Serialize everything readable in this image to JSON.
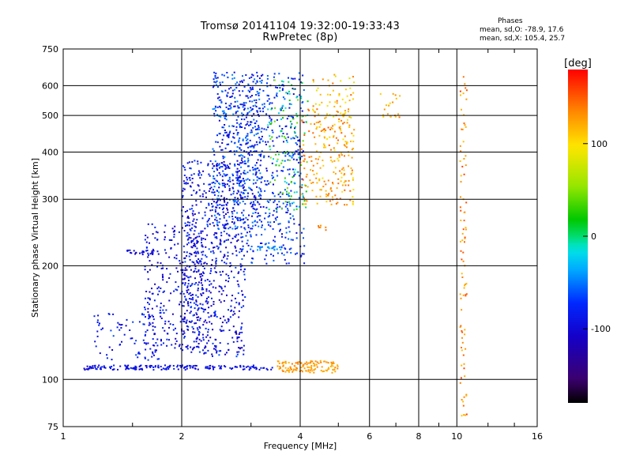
{
  "chart_data": {
    "type": "scatter",
    "title": "Tromsø 20141104 19:32:00-19:33:43",
    "subtitle": "RwPretec (8p)",
    "xlabel": "Frequency [MHz]",
    "ylabel": "Stationary phase Virtual Height [km]",
    "x_scale": "log",
    "y_scale": "log",
    "xlim": [
      1,
      16
    ],
    "ylim": [
      75,
      750
    ],
    "x_ticks": [
      1,
      2,
      4,
      6,
      8,
      10,
      16
    ],
    "x_tick_labels": [
      "1",
      "2",
      "4",
      "6",
      "8",
      "10",
      "16"
    ],
    "y_ticks": [
      75,
      100,
      200,
      300,
      400,
      500,
      600,
      750
    ],
    "y_tick_labels": [
      "75",
      "100",
      "200",
      "300",
      "400",
      "500",
      "600",
      "750"
    ],
    "grid": true,
    "phases_box": {
      "title": "Phases",
      "line_o": "mean, sd,O: -78.9, 17.6",
      "line_x": "mean, sd,X: 105.4, 25.7"
    },
    "colorbar": {
      "label": "[deg]",
      "range": [
        -180,
        180
      ],
      "tick_values": [
        100,
        0,
        -100
      ],
      "tick_labels": [
        "100",
        "0",
        "-100"
      ]
    },
    "colors": {
      "grid": "#000000",
      "background": "#ffffff"
    },
    "clusters": [
      {
        "x": [
          1.12,
          3.4
        ],
        "y": [
          106,
          109
        ],
        "phase": [
          -110,
          -75
        ],
        "count": 180
      },
      {
        "x": [
          3.5,
          5.0
        ],
        "y": [
          104,
          112
        ],
        "phase": [
          115,
          140
        ],
        "count": 120
      },
      {
        "x": [
          1.2,
          1.8
        ],
        "y": [
          112,
          150
        ],
        "phase": [
          -110,
          -60
        ],
        "count": 80
      },
      {
        "x": [
          1.4,
          1.75
        ],
        "y": [
          214,
          220
        ],
        "phase": [
          -110,
          -90
        ],
        "count": 25
      },
      {
        "x": [
          1.6,
          2.3
        ],
        "y": [
          120,
          260
        ],
        "phase": [
          -120,
          -70
        ],
        "count": 300
      },
      {
        "x": [
          2.0,
          2.9
        ],
        "y": [
          115,
          380
        ],
        "phase": [
          -120,
          -60
        ],
        "count": 650
      },
      {
        "x": [
          2.4,
          3.2
        ],
        "y": [
          250,
          650
        ],
        "phase": [
          -110,
          -40
        ],
        "count": 500
      },
      {
        "x": [
          2.8,
          4.1
        ],
        "y": [
          200,
          650
        ],
        "phase": [
          -105,
          -50
        ],
        "count": 450
      },
      {
        "x": [
          3.0,
          3.6
        ],
        "y": [
          220,
          225
        ],
        "phase": [
          -60,
          -30
        ],
        "count": 20
      },
      {
        "x": [
          3.3,
          4.2
        ],
        "y": [
          280,
          620
        ],
        "phase": [
          -30,
          50
        ],
        "count": 120
      },
      {
        "x": [
          4.0,
          5.5
        ],
        "y": [
          290,
          520
        ],
        "phase": [
          95,
          150
        ],
        "count": 220
      },
      {
        "x": [
          4.3,
          5.5
        ],
        "y": [
          460,
          650
        ],
        "phase": [
          80,
          150
        ],
        "count": 60
      },
      {
        "x": [
          6.4,
          7.3
        ],
        "y": [
          470,
          580
        ],
        "phase": [
          100,
          145
        ],
        "count": 20
      },
      {
        "x": [
          10.2,
          10.6
        ],
        "y": [
          80,
          650
        ],
        "phase": [
          110,
          160
        ],
        "count": 90
      },
      {
        "x": [
          4.4,
          4.7
        ],
        "y": [
          248,
          256
        ],
        "phase": [
          130,
          150
        ],
        "count": 6
      }
    ]
  }
}
